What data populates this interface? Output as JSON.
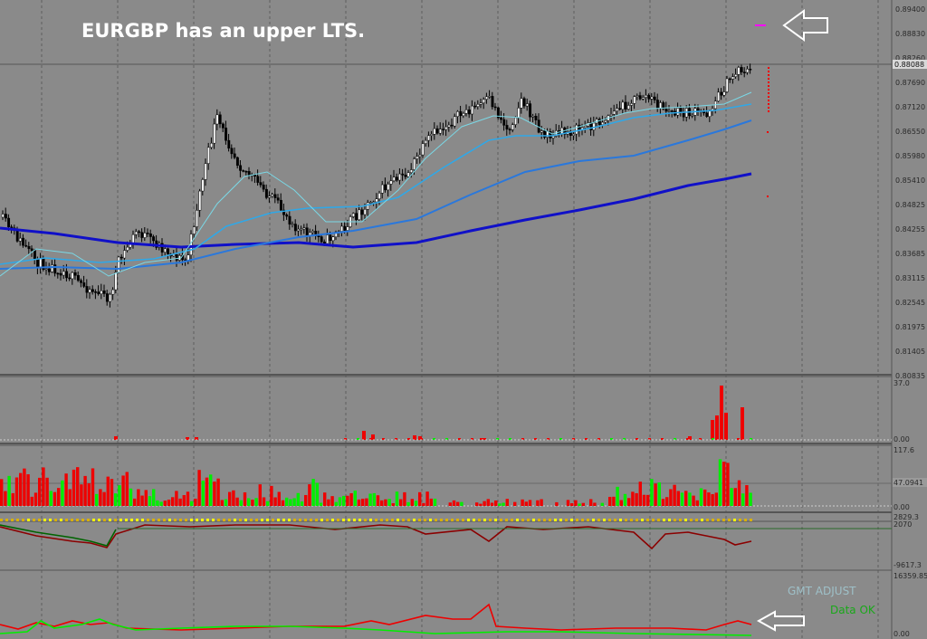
{
  "annotation": {
    "title": "EURGBP has an upper LTS."
  },
  "price_axis": {
    "labels": [
      "0.89400",
      "0.88830",
      "0.88260",
      "0.87690",
      "0.87120",
      "0.86550",
      "0.85980",
      "0.85410",
      "0.84825",
      "0.84255",
      "0.83685",
      "0.83115",
      "0.82545",
      "0.81975",
      "0.81405",
      "0.80835"
    ],
    "current_price": "0.88088"
  },
  "indicator_axes": {
    "volume": {
      "max": "37.0",
      "min": "0.00"
    },
    "histogram": {
      "max": "117.6",
      "level": "47.0941",
      "min": "0.00"
    },
    "oscillator": {
      "top": "2829.3",
      "upper": "2070",
      "bottom": "-9617.3"
    },
    "lower": {
      "max": "16359.85",
      "min": "0.00"
    }
  },
  "status": {
    "gmt_label": "GMT ADJUST",
    "data_label": "Data OK"
  },
  "colors": {
    "background": "#8a8a8a",
    "grid": "#5f5f5f",
    "ma_slow": "#1010c8",
    "ma_mid": "#2a78dc",
    "ma_fast": "#2fa8e8",
    "ma_fastest": "#7ad8e6",
    "bar_red": "#ee0000",
    "bar_green": "#00ee00",
    "osc_dark_red": "#8b0000",
    "osc_green": "#006400",
    "arrow": "#ffffff",
    "magenta": "#ff00ff"
  },
  "icons": {
    "top_arrow": "left-arrow-icon",
    "bottom_arrow": "left-arrow-icon"
  }
}
